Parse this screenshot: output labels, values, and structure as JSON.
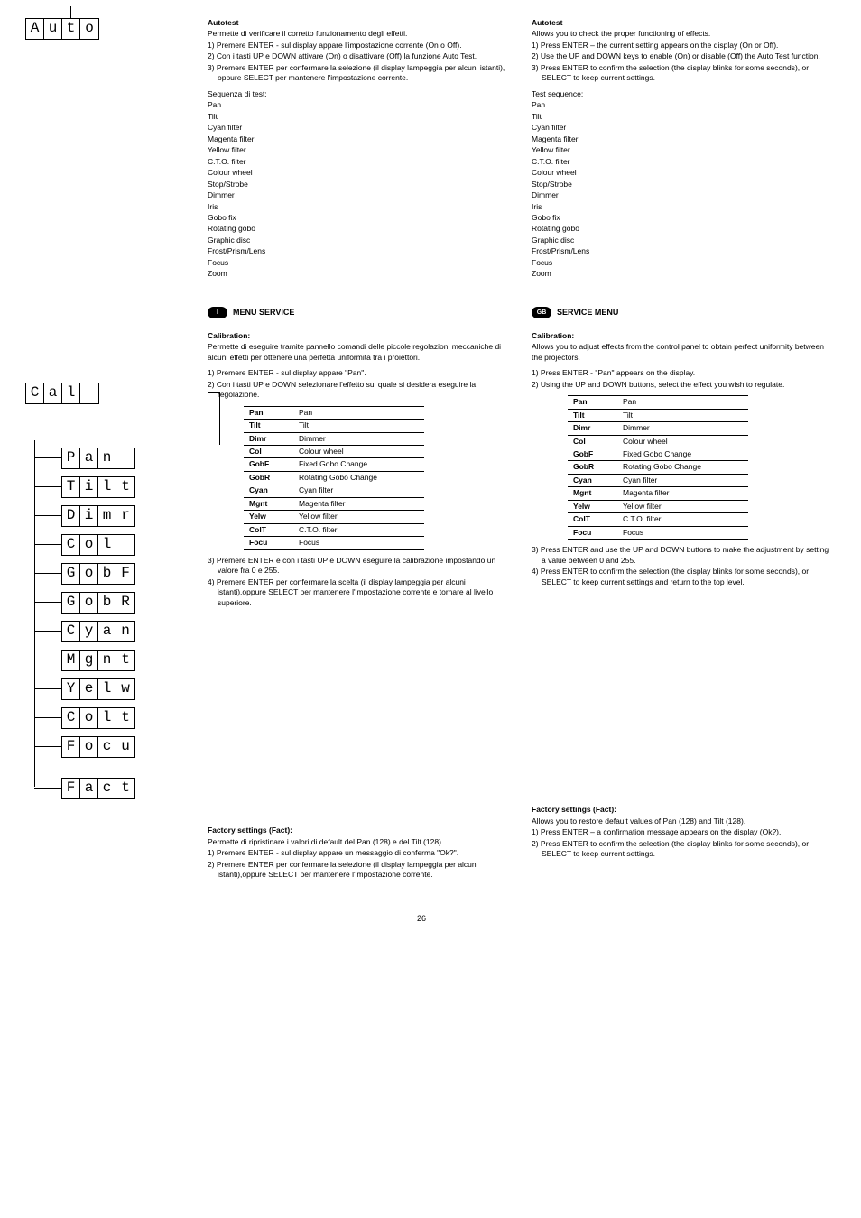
{
  "display_boxes": {
    "auto": [
      "A",
      "u",
      "t",
      "o"
    ],
    "cal": [
      "C",
      "a",
      "l",
      ""
    ],
    "pan": [
      "P",
      "a",
      "n",
      ""
    ],
    "tilt": [
      "T",
      "i",
      "l",
      "t"
    ],
    "dimr": [
      "D",
      "i",
      "m",
      "r"
    ],
    "col": [
      "C",
      "o",
      "l",
      ""
    ],
    "gobf": [
      "G",
      "o",
      "b",
      "F"
    ],
    "gobr": [
      "G",
      "o",
      "b",
      "R"
    ],
    "cyan": [
      "C",
      "y",
      "a",
      "n"
    ],
    "mgnt": [
      "M",
      "g",
      "n",
      "t"
    ],
    "yelw": [
      "Y",
      "e",
      "l",
      "w"
    ],
    "colt": [
      "C",
      "o",
      "l",
      "t"
    ],
    "focu": [
      "F",
      "o",
      "c",
      "u"
    ],
    "fact": [
      "F",
      "a",
      "c",
      "t"
    ]
  },
  "it": {
    "autotest": {
      "title": "Autotest",
      "desc": "Permette di verificare il corretto funzionamento degli effetti.",
      "steps": [
        "1) Premere ENTER - sul display appare l'impostazione corrente (On o Off).",
        "2) Con i tasti UP e DOWN attivare (On) o disattivare (Off) la funzione Auto Test.",
        "3) Premere ENTER per confermare la selezione (il display lampeggia per alcuni istanti), oppure SELECT per mantenere l'impostazione corrente."
      ],
      "seq_label": "Sequenza di test:",
      "seq": [
        "Pan",
        "Tilt",
        "Cyan filter",
        "Magenta filter",
        "Yellow filter",
        "C.T.O. filter",
        "Colour wheel",
        "Stop/Strobe",
        "Dimmer",
        "Iris",
        "Gobo fix",
        "Rotating gobo",
        "Graphic disc",
        "Frost/Prism/Lens",
        "Focus",
        "Zoom"
      ]
    },
    "menu_title": "MENU SERVICE",
    "calibration": {
      "title": "Calibration:",
      "desc": "Permette di eseguire tramite pannello comandi delle piccole regolazioni meccaniche di alcuni effetti per ottenere una perfetta uniformità tra i proiettori.",
      "pre_steps": [
        "1) Premere ENTER - sul display appare \"Pan\".",
        "2) Con i tasti UP e DOWN selezionare l'effetto sul quale si desidera eseguire la regolazione."
      ],
      "post_steps": [
        "3) Premere ENTER e con i tasti UP e DOWN eseguire la calibrazione impostando un valore fra 0 e 255.",
        "4) Premere ENTER per confermare la scelta (il display lampeggia per alcuni istanti),oppure SELECT per mantenere l'impostazione corrente e tornare al livello superiore."
      ]
    },
    "factory": {
      "title": "Factory settings (Fact):",
      "desc": "Permette di ripristinare i valori di default del Pan (128) e del Tilt (128).",
      "steps": [
        "1) Premere ENTER - sul display appare un messaggio di conferma \"Ok?\".",
        "2) Premere ENTER per confermare la selezione (il display lampeggia per alcuni istanti),oppure SELECT per mantenere l'impostazione corrente."
      ]
    },
    "badge": "I"
  },
  "en": {
    "autotest": {
      "title": "Autotest",
      "desc": "Allows you to check the proper functioning of effects.",
      "steps": [
        "1) Press ENTER – the current setting appears on the display (On or Off).",
        "2) Use the UP and DOWN keys to enable (On) or disable (Off) the Auto Test function.",
        "3) Press ENTER to confirm the selection (the display blinks for some seconds), or SELECT to keep current settings."
      ],
      "seq_label": "Test sequence:",
      "seq": [
        "Pan",
        "Tilt",
        "Cyan filter",
        "Magenta filter",
        "Yellow filter",
        "C.T.O. filter",
        "Colour wheel",
        "Stop/Strobe",
        "Dimmer",
        "Iris",
        "Gobo fix",
        "Rotating gobo",
        "Graphic disc",
        "Frost/Prism/Lens",
        "Focus",
        "Zoom"
      ]
    },
    "menu_title": "SERVICE MENU",
    "calibration": {
      "title": "Calibration:",
      "desc": "Allows you to adjust effects from the control panel to obtain perfect uniformity between the projectors.",
      "pre_steps": [
        "1) Press ENTER -  \"Pan\" appears on the display.",
        "2) Using the UP and DOWN buttons, select the effect you wish to regulate."
      ],
      "post_steps": [
        "3) Press ENTER and use the UP and DOWN buttons to make the adjustment by setting a value between 0 and 255.",
        "4) Press ENTER to confirm the selection (the display blinks for some seconds), or SELECT to keep current settings and return to the top level."
      ]
    },
    "factory": {
      "title": "Factory settings (Fact):",
      "desc": "Allows you to restore default values of Pan (128) and Tilt (128).",
      "steps": [
        "1) Press ENTER – a confirmation message appears on the display (Ok?).",
        "2) Press ENTER to confirm the selection (the display blinks for some seconds), or SELECT to keep current settings."
      ]
    },
    "badge": "GB"
  },
  "table_rows": [
    [
      "Pan",
      "Pan"
    ],
    [
      "Tilt",
      "Tilt"
    ],
    [
      "Dimr",
      "Dimmer"
    ],
    [
      "Col",
      "Colour wheel"
    ],
    [
      "GobF",
      "Fixed Gobo Change"
    ],
    [
      "GobR",
      "Rotating Gobo Change"
    ],
    [
      "Cyan",
      "Cyan filter"
    ],
    [
      "Mgnt",
      "Magenta filter"
    ],
    [
      "Yelw",
      "Yellow filter"
    ],
    [
      "ColT",
      "C.T.O. filter"
    ],
    [
      "Focu",
      "Focus"
    ]
  ],
  "page_number": "26"
}
